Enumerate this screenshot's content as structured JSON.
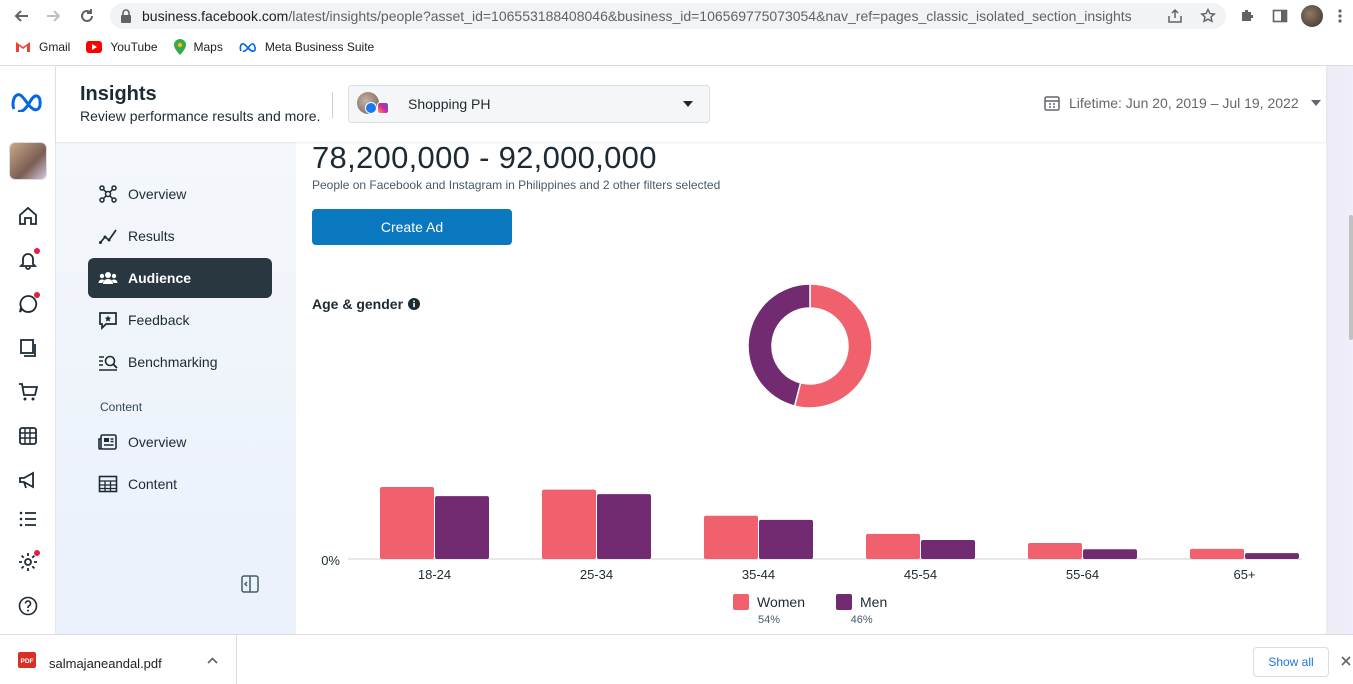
{
  "browser": {
    "url_host": "business.facebook.com",
    "url_path": "/latest/insights/people?asset_id=106553188408046&business_id=106569775073054&nav_ref=pages_classic_isolated_section_insights",
    "bookmarks": [
      {
        "label": "Gmail",
        "icon": "gmail-icon"
      },
      {
        "label": "YouTube",
        "icon": "youtube-icon"
      },
      {
        "label": "Maps",
        "icon": "maps-icon"
      },
      {
        "label": "Meta Business Suite",
        "icon": "meta-icon"
      }
    ]
  },
  "header": {
    "title": "Insights",
    "subtitle": "Review performance results and more.",
    "asset_name": "Shopping PH",
    "date_range": "Lifetime: Jun 20, 2019 – Jul 19, 2022"
  },
  "sidebar": {
    "items": [
      {
        "label": "Overview",
        "icon": "network-icon",
        "active": false
      },
      {
        "label": "Results",
        "icon": "trend-icon",
        "active": false
      },
      {
        "label": "Audience",
        "icon": "people-icon",
        "active": true
      },
      {
        "label": "Feedback",
        "icon": "feedback-icon",
        "active": false
      },
      {
        "label": "Benchmarking",
        "icon": "benchmark-icon",
        "active": false
      }
    ],
    "content_section_label": "Content",
    "content_items": [
      {
        "label": "Overview",
        "icon": "newspaper-icon"
      },
      {
        "label": "Content",
        "icon": "table-icon"
      }
    ]
  },
  "main": {
    "audience_range": "78,200,000 - 92,000,000",
    "audience_desc": "People on Facebook and Instagram in Philippines and 2 other filters selected",
    "create_ad_label": "Create Ad",
    "section_title": "Age & gender"
  },
  "colors": {
    "women": "#f0616d",
    "men": "#722b70",
    "accent": "#0a78be"
  },
  "chart_data": [
    {
      "type": "pie",
      "categories": [
        "Women",
        "Men"
      ],
      "values": [
        54,
        46
      ]
    },
    {
      "type": "bar",
      "categories": [
        "18-24",
        "25-34",
        "35-44",
        "45-54",
        "55-64",
        "65+"
      ],
      "series": [
        {
          "name": "Women",
          "values": [
            24.3,
            23.4,
            14.6,
            8.5,
            5.4,
            3.4
          ]
        },
        {
          "name": "Men",
          "values": [
            21.2,
            21.9,
            13.2,
            6.4,
            3.3,
            2.0
          ]
        }
      ],
      "ytick_label": "0%",
      "legend": [
        {
          "name": "Women",
          "pct": "54%"
        },
        {
          "name": "Men",
          "pct": "46%"
        }
      ]
    }
  ],
  "download": {
    "file_name": "salmajaneandal.pdf",
    "show_all_label": "Show all"
  }
}
